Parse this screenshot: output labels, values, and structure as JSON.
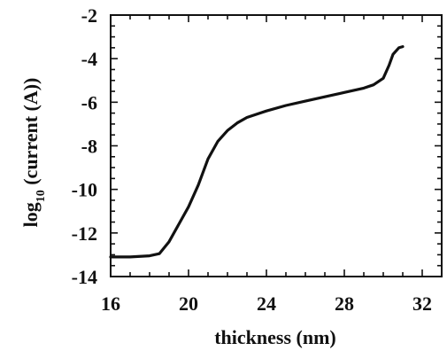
{
  "chart_data": {
    "type": "line",
    "title": "",
    "xlabel": "thickness (nm)",
    "ylabel_main": "log",
    "ylabel_sub": "10",
    "ylabel_rest": " (current (A))",
    "xlim": [
      16,
      33
    ],
    "ylim": [
      -14,
      -2
    ],
    "xticks": [
      16,
      20,
      24,
      28,
      32
    ],
    "yticks": [
      -14,
      -12,
      -10,
      -8,
      -6,
      -4,
      -2
    ],
    "xtick_labels": [
      "16",
      "20",
      "24",
      "28",
      "32"
    ],
    "ytick_labels": [
      "-14",
      "-12",
      "-10",
      "-8",
      "-6",
      "-4",
      "-2"
    ],
    "grid": false,
    "series": [
      {
        "x": [
          16.0,
          17.0,
          18.0,
          18.5,
          19.0,
          19.5,
          20.0,
          20.5,
          21.0,
          21.5,
          22.0,
          22.5,
          23.0,
          24.0,
          25.0,
          26.0,
          27.0,
          28.0,
          29.0,
          29.5,
          30.0,
          30.3,
          30.5,
          30.8,
          31.0
        ],
        "y": [
          -13.1,
          -13.1,
          -13.05,
          -12.95,
          -12.4,
          -11.6,
          -10.8,
          -9.8,
          -8.6,
          -7.8,
          -7.3,
          -6.95,
          -6.7,
          -6.4,
          -6.15,
          -5.95,
          -5.75,
          -5.55,
          -5.35,
          -5.2,
          -4.9,
          -4.3,
          -3.8,
          -3.5,
          -3.45
        ]
      }
    ]
  }
}
